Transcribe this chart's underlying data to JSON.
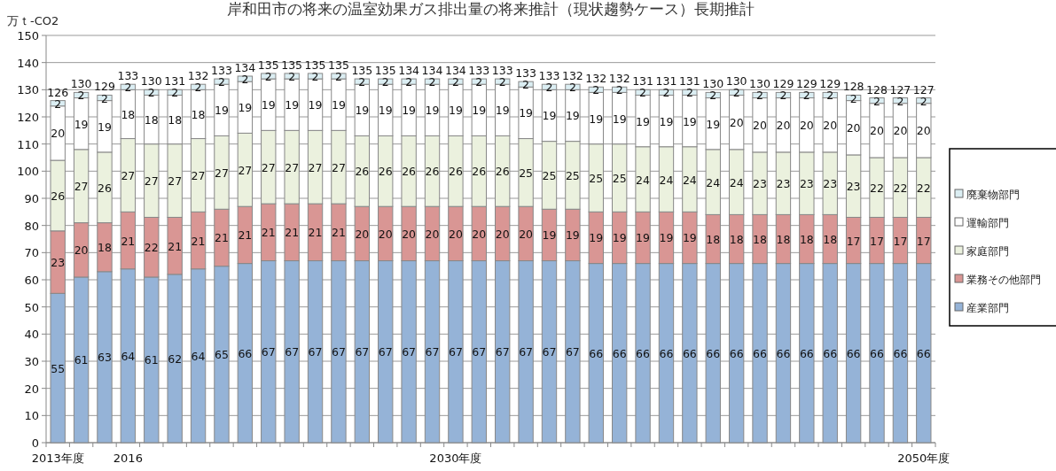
{
  "chart_data": {
    "type": "bar",
    "stacked": true,
    "title": "岸和田市の将来の温室効果ガス排出量の将来推計（現状趨勢ケース）長期推計",
    "ylabel": "万ｔ-CO2",
    "categories": [
      "2013年度",
      null,
      null,
      "2016",
      null,
      null,
      null,
      null,
      null,
      null,
      null,
      null,
      null,
      null,
      null,
      null,
      null,
      "2030年度",
      null,
      null,
      null,
      null,
      null,
      null,
      null,
      null,
      null,
      null,
      null,
      null,
      null,
      null,
      null,
      null,
      null,
      null,
      null,
      "2050年度"
    ],
    "series": [
      {
        "name": "産業部門",
        "color": "#95b3d7",
        "values": [
          55,
          61,
          63,
          64,
          61,
          62,
          64,
          65,
          66,
          67,
          67,
          67,
          67,
          67,
          67,
          67,
          67,
          67,
          67,
          67,
          67,
          67,
          67,
          66,
          66,
          66,
          66,
          66,
          66,
          66,
          66,
          66,
          66,
          66,
          66,
          66,
          66,
          66
        ]
      },
      {
        "name": "業務その他部門",
        "color": "#d99694",
        "values": [
          23,
          20,
          18,
          21,
          22,
          21,
          21,
          21,
          21,
          21,
          21,
          21,
          21,
          20,
          20,
          20,
          20,
          20,
          20,
          20,
          20,
          19,
          19,
          19,
          19,
          19,
          19,
          19,
          18,
          18,
          18,
          18,
          18,
          18,
          17,
          17,
          17,
          17
        ]
      },
      {
        "name": "家庭部門",
        "color": "#ebf1de",
        "values": [
          26,
          27,
          26,
          27,
          27,
          27,
          27,
          27,
          27,
          27,
          27,
          27,
          27,
          26,
          26,
          26,
          26,
          26,
          26,
          26,
          25,
          25,
          25,
          25,
          25,
          24,
          24,
          24,
          24,
          24,
          23,
          23,
          23,
          23,
          23,
          22,
          22,
          22
        ]
      },
      {
        "name": "運輸部門",
        "color": "#ffffff",
        "values": [
          20,
          19,
          19,
          18,
          18,
          18,
          18,
          19,
          19,
          19,
          19,
          19,
          19,
          19,
          19,
          19,
          19,
          19,
          19,
          19,
          19,
          19,
          19,
          19,
          19,
          19,
          19,
          19,
          19,
          20,
          20,
          20,
          20,
          20,
          20,
          20,
          20,
          20
        ]
      },
      {
        "name": "廃棄物部門",
        "color": "#dbeef3",
        "values": [
          2,
          2,
          2,
          2,
          2,
          2,
          2,
          2,
          2,
          2,
          2,
          2,
          2,
          2,
          2,
          2,
          2,
          2,
          2,
          2,
          2,
          2,
          2,
          2,
          2,
          2,
          2,
          2,
          2,
          2,
          2,
          2,
          2,
          2,
          2,
          2,
          2,
          2
        ]
      }
    ],
    "totals": [
      "126",
      "130",
      "129",
      "133",
      "130",
      "131",
      "132",
      "133",
      "134",
      "135",
      "135",
      "135",
      "135",
      "135",
      "135",
      "134",
      "134",
      "134",
      "133",
      "133",
      "133",
      "133",
      "132",
      "132",
      "132",
      "131",
      "131",
      "131",
      "130",
      "130",
      "130",
      "129",
      "129",
      "129",
      "128",
      "128",
      "127",
      "127"
    ],
    "ylim": [
      0,
      150
    ],
    "yticks": [
      0,
      10,
      20,
      30,
      40,
      50,
      60,
      70,
      80,
      90,
      100,
      110,
      120,
      130,
      140,
      150
    ],
    "grid": "y",
    "data_labels": true,
    "legend": "right"
  }
}
